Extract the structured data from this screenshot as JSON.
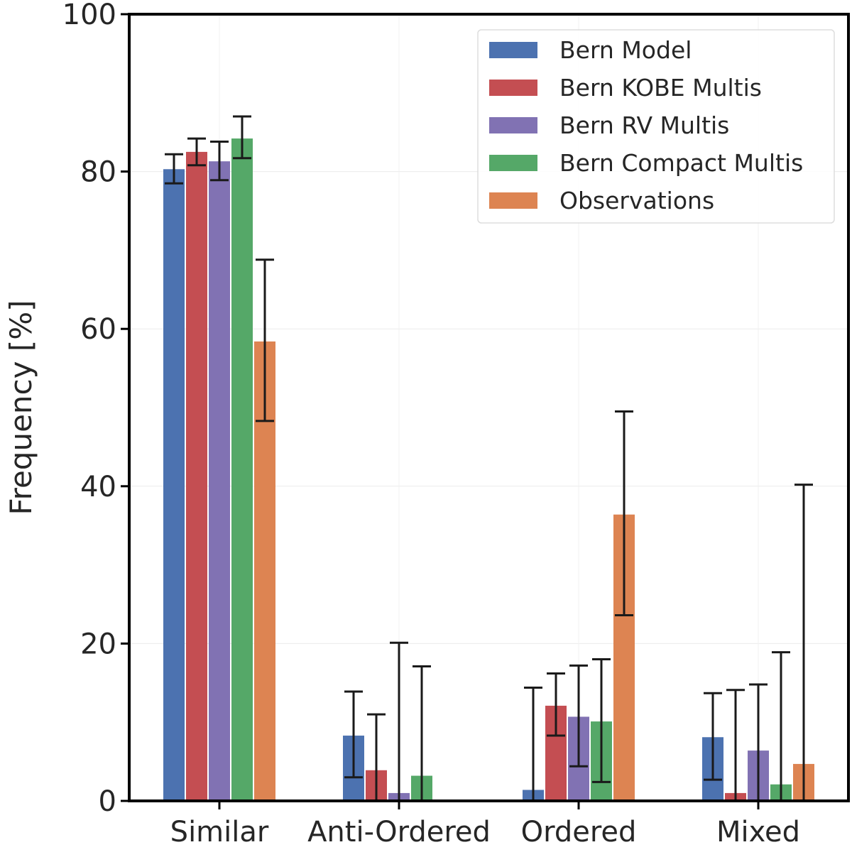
{
  "chart_data": {
    "type": "bar",
    "title": "",
    "xlabel": "",
    "ylabel": "Frequency [%]",
    "ylim": [
      0,
      100
    ],
    "yticks": [
      0,
      20,
      40,
      60,
      80,
      100
    ],
    "categories": [
      "Similar",
      "Anti-Ordered",
      "Ordered",
      "Mixed"
    ],
    "legend_position": "top-right",
    "series": [
      {
        "name": "Bern Model",
        "color": "#4c72b0",
        "values": [
          80.3,
          8.3,
          1.4,
          8.1
        ],
        "err_low": [
          78.5,
          3.0,
          0.0,
          2.7
        ],
        "err_high": [
          82.2,
          13.9,
          14.4,
          13.7
        ]
      },
      {
        "name": "Bern KOBE Multis",
        "color": "#c44e52",
        "values": [
          82.5,
          3.9,
          12.1,
          1.0
        ],
        "err_low": [
          80.8,
          0.0,
          8.3,
          0.0
        ],
        "err_high": [
          84.2,
          11.0,
          16.2,
          14.1
        ]
      },
      {
        "name": "Bern RV Multis",
        "color": "#8172b3",
        "values": [
          81.3,
          1.0,
          10.7,
          6.4
        ],
        "err_low": [
          78.9,
          0.0,
          4.4,
          0.0
        ],
        "err_high": [
          83.8,
          20.1,
          17.2,
          14.8
        ]
      },
      {
        "name": "Bern Compact Multis",
        "color": "#55a868",
        "values": [
          84.2,
          3.2,
          10.1,
          2.1
        ],
        "err_low": [
          81.7,
          0.0,
          2.4,
          0.0
        ],
        "err_high": [
          87.0,
          17.1,
          18.0,
          18.9
        ]
      },
      {
        "name": "Observations",
        "color": "#dd8452",
        "values": [
          58.4,
          0.0,
          36.4,
          4.7
        ],
        "err_low": [
          48.3,
          null,
          23.6,
          0.0
        ],
        "err_high": [
          68.8,
          null,
          49.5,
          40.2
        ]
      }
    ]
  }
}
